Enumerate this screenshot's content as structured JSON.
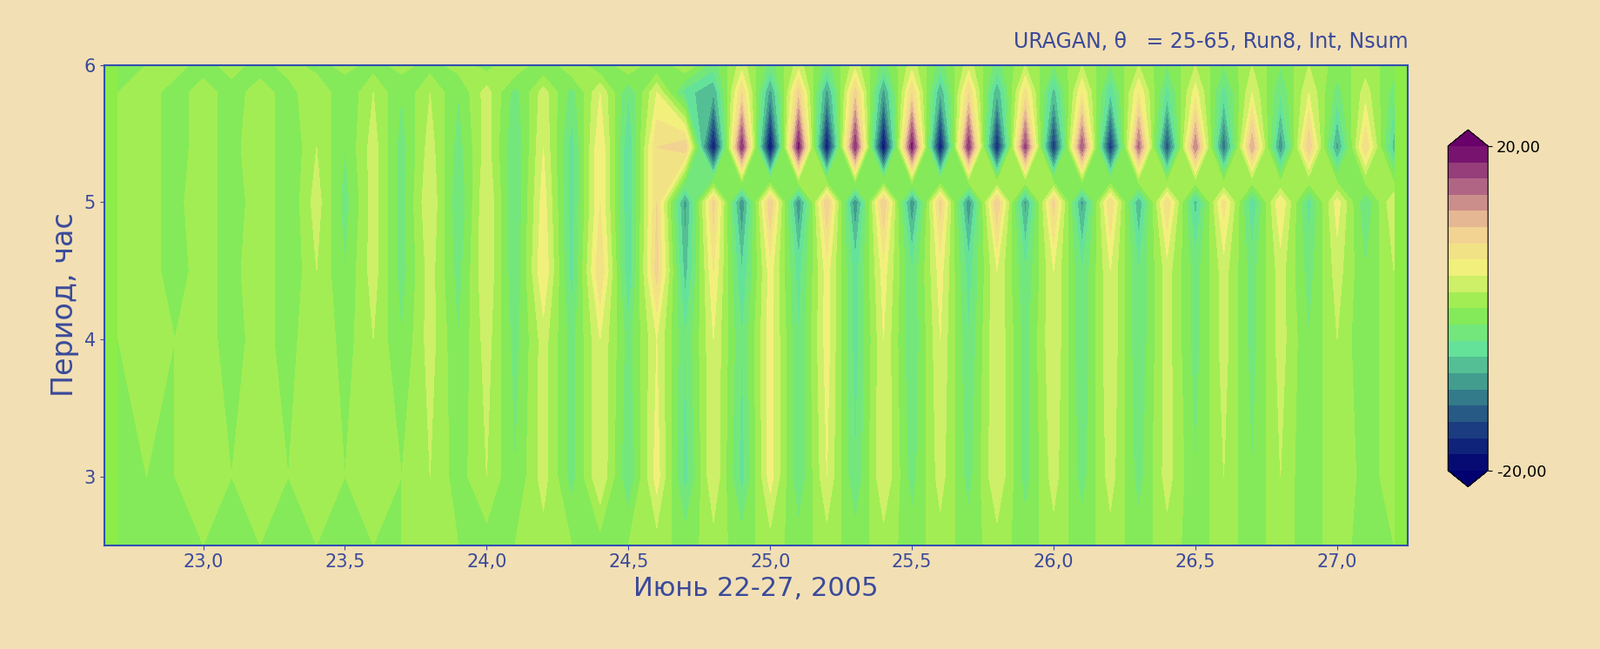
{
  "chart_data": {
    "type": "heatmap",
    "title": "URAGAN, θ   = 25-65, Run8, Int, Nsum",
    "x_label": "Июнь 22-27, 2005",
    "y_label": "Период, час",
    "x": [
      22.7,
      22.8,
      22.9,
      23.0,
      23.1,
      23.2,
      23.3,
      23.4,
      23.5,
      23.6,
      23.7,
      23.8,
      23.9,
      24.0,
      24.1,
      24.2,
      24.3,
      24.4,
      24.5,
      24.6,
      24.7,
      24.8,
      24.9,
      25.0,
      25.1,
      25.2,
      25.3,
      25.4,
      25.5,
      25.6,
      25.7,
      25.8,
      25.9,
      26.0,
      26.1,
      26.2,
      26.3,
      26.4,
      26.5,
      26.6,
      26.7,
      26.8,
      26.9,
      27.0,
      27.1,
      27.2
    ],
    "y": [
      2.5,
      3.0,
      4.0,
      4.5,
      5.0,
      5.4,
      5.8,
      6.0
    ],
    "cells": [
      [
        0,
        0,
        0,
        0,
        0,
        0,
        0,
        0,
        0,
        0,
        0,
        1,
        0,
        -1,
        0,
        1,
        0,
        -1,
        0,
        1,
        -1,
        1,
        -1,
        1,
        -1,
        1,
        -1,
        1,
        -1,
        1,
        -1,
        1,
        -1,
        1,
        -1,
        1,
        -1,
        1,
        -1,
        1,
        -1,
        1,
        -1,
        1,
        -1,
        0
      ],
      [
        0,
        0,
        0,
        1,
        0,
        1,
        0,
        1,
        0,
        1,
        0,
        2,
        -1,
        2,
        -2,
        3,
        -3,
        4,
        -4,
        5,
        -5,
        4,
        -5,
        5,
        -4,
        4,
        -4,
        4,
        -3,
        3,
        -3,
        4,
        -3,
        3,
        -3,
        3,
        -3,
        3,
        -2,
        2,
        -2,
        2,
        -2,
        2,
        -1,
        1
      ],
      [
        0,
        1,
        0,
        1,
        -1,
        1,
        -1,
        2,
        -1,
        2,
        -2,
        3,
        -2,
        3,
        -3,
        3,
        -3,
        4,
        -3,
        4,
        -4,
        4,
        -4,
        5,
        -4,
        5,
        -5,
        4,
        -4,
        4,
        -4,
        4,
        -3,
        4,
        -4,
        4,
        -4,
        3,
        -3,
        3,
        -3,
        3,
        -2,
        2,
        -2,
        2
      ],
      [
        0,
        1,
        -1,
        1,
        -1,
        2,
        -2,
        2,
        -2,
        3,
        -3,
        3,
        -3,
        4,
        -4,
        6,
        -5,
        8,
        -6,
        9,
        -7,
        6,
        -6,
        5,
        -5,
        5,
        -5,
        5,
        -4,
        5,
        -5,
        4,
        -4,
        4,
        -4,
        4,
        -4,
        3,
        -3,
        3,
        -3,
        3,
        -3,
        3,
        -2,
        2
      ],
      [
        0,
        1,
        -1,
        2,
        -2,
        2,
        -2,
        3,
        -3,
        3,
        -3,
        4,
        -4,
        4,
        -4,
        5,
        -5,
        6,
        -6,
        8,
        -9,
        9,
        -10,
        10,
        -10,
        10,
        -10,
        10,
        -10,
        9,
        -10,
        10,
        -9,
        9,
        -9,
        8,
        -8,
        8,
        -7,
        7,
        -6,
        6,
        -5,
        5,
        -4,
        4
      ],
      [
        0,
        1,
        -1,
        1,
        -1,
        2,
        -2,
        2,
        -2,
        3,
        -3,
        3,
        -3,
        3,
        -4,
        4,
        -5,
        6,
        -6,
        8,
        10,
        -18,
        18,
        -19,
        19,
        -18,
        18,
        -19,
        19,
        -18,
        18,
        -17,
        17,
        -16,
        16,
        -16,
        15,
        -14,
        14,
        -12,
        12,
        -10,
        10,
        -9,
        8,
        -7
      ],
      [
        0,
        1,
        -1,
        1,
        -1,
        1,
        -1,
        2,
        -2,
        2,
        -2,
        2,
        -2,
        3,
        -3,
        3,
        -3,
        4,
        -4,
        4,
        -5,
        -8,
        8,
        -9,
        9,
        -9,
        9,
        -9,
        8,
        -8,
        8,
        -8,
        7,
        -7,
        6,
        -6,
        6,
        -5,
        5,
        -5,
        4,
        -4,
        4,
        -3,
        3,
        -3
      ],
      [
        0,
        0,
        1,
        -1,
        1,
        -1,
        1,
        -1,
        1,
        -1,
        1,
        -1,
        1,
        -1,
        2,
        -2,
        2,
        -2,
        2,
        -2,
        2,
        -3,
        3,
        -3,
        3,
        -3,
        3,
        -3,
        3,
        -3,
        3,
        -3,
        2,
        -2,
        2,
        -2,
        2,
        -2,
        2,
        -2,
        2,
        -2,
        2,
        -1,
        1,
        -1
      ]
    ],
    "xlim": [
      22.65,
      27.25
    ],
    "xticks": [
      {
        "value": 23.0,
        "label": "23,0"
      },
      {
        "value": 23.5,
        "label": "23,5"
      },
      {
        "value": 24.0,
        "label": "24,0"
      },
      {
        "value": 24.5,
        "label": "24,5"
      },
      {
        "value": 25.0,
        "label": "25,0"
      },
      {
        "value": 25.5,
        "label": "25,5"
      },
      {
        "value": 26.0,
        "label": "26,0"
      },
      {
        "value": 26.5,
        "label": "26,5"
      },
      {
        "value": 27.0,
        "label": "27,0"
      }
    ],
    "ylim": [
      2.5,
      6
    ],
    "yticks": [
      3,
      4,
      5,
      6
    ],
    "colorbar": {
      "range": [
        -20,
        20
      ],
      "ticks": [
        {
          "value": -20,
          "label": "-20,00"
        },
        {
          "value": 20,
          "label": "20,00"
        }
      ]
    }
  }
}
